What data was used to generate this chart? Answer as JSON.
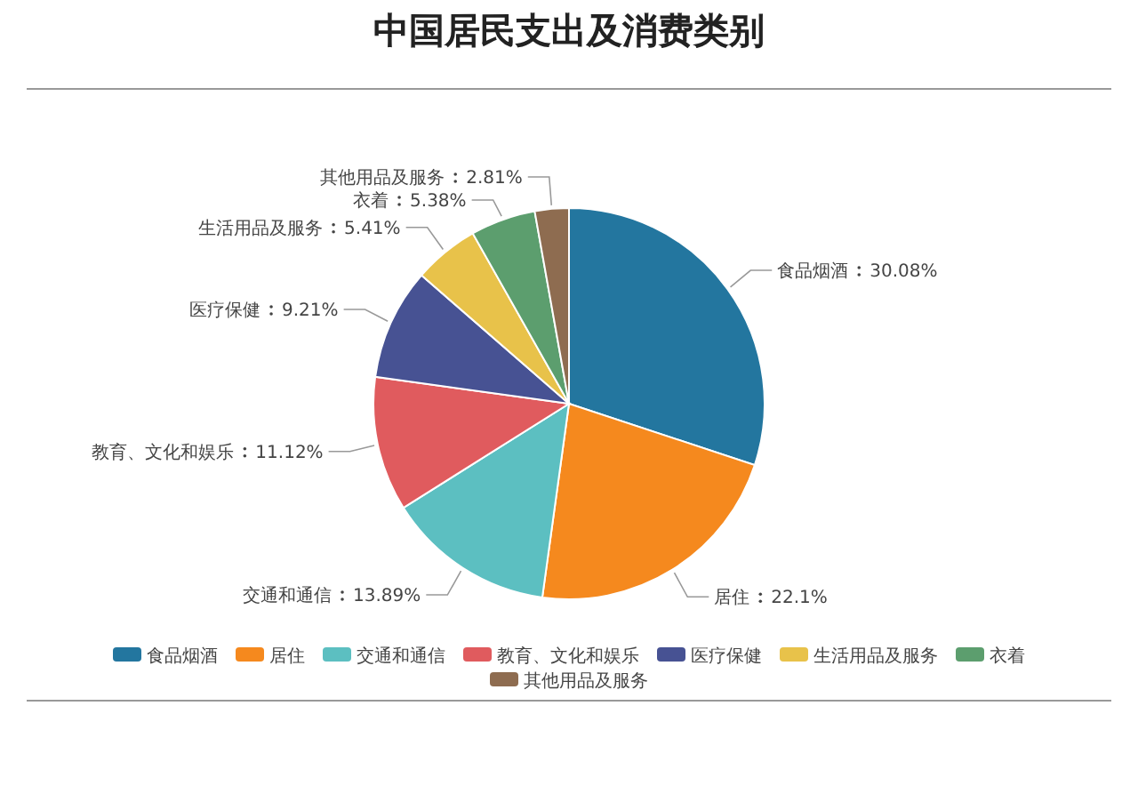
{
  "chart_data": {
    "type": "pie",
    "title": "中国居民支出及消费类别",
    "categories": [
      "食品烟酒",
      "居住",
      "交通和通信",
      "教育、文化和娱乐",
      "医疗保健",
      "生活用品及服务",
      "衣着",
      "其他用品及服务"
    ],
    "values": [
      30.08,
      22.1,
      13.89,
      11.12,
      9.21,
      5.41,
      5.38,
      2.81
    ],
    "colors": [
      "#23769f",
      "#f5891e",
      "#5cbfc1",
      "#e05b5e",
      "#475293",
      "#e8c24a",
      "#5c9e6e",
      "#8e6c50"
    ],
    "value_labels": [
      "30.08%",
      "22.1%",
      "13.89%",
      "11.12%",
      "9.21%",
      "5.41%",
      "5.38%",
      "2.81%"
    ],
    "legend": "bottom"
  }
}
